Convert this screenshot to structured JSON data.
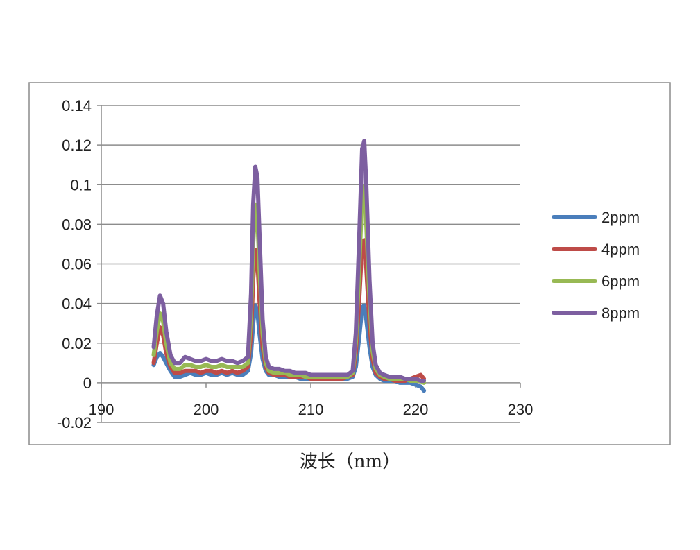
{
  "chart_data": {
    "type": "line",
    "xlabel": "波长（nm）",
    "ylabel": "",
    "title": "",
    "xlim": [
      190,
      230
    ],
    "ylim": [
      -0.02,
      0.14
    ],
    "x_ticks": [
      "190",
      "200",
      "210",
      "220",
      "230"
    ],
    "y_ticks": [
      "-0.02",
      "0",
      "0.02",
      "0.04",
      "0.06",
      "0.08",
      "0.1",
      "0.12",
      "0.14"
    ],
    "grid": "horizontal",
    "legend_position": "right",
    "series": [
      {
        "name": "2ppm",
        "color": "#4a7ebb",
        "points": [
          [
            195,
            0.009
          ],
          [
            195.3,
            0.013
          ],
          [
            195.6,
            0.015
          ],
          [
            195.9,
            0.013
          ],
          [
            196.2,
            0.01
          ],
          [
            196.6,
            0.006
          ],
          [
            197,
            0.003
          ],
          [
            197.5,
            0.003
          ],
          [
            198,
            0.004
          ],
          [
            198.5,
            0.005
          ],
          [
            199,
            0.004
          ],
          [
            199.5,
            0.004
          ],
          [
            200,
            0.005
          ],
          [
            200.5,
            0.004
          ],
          [
            201,
            0.004
          ],
          [
            201.5,
            0.005
          ],
          [
            202,
            0.004
          ],
          [
            202.5,
            0.005
          ],
          [
            203,
            0.004
          ],
          [
            203.5,
            0.004
          ],
          [
            204,
            0.006
          ],
          [
            204.3,
            0.015
          ],
          [
            204.5,
            0.03
          ],
          [
            204.7,
            0.039
          ],
          [
            204.9,
            0.036
          ],
          [
            205.1,
            0.025
          ],
          [
            205.4,
            0.012
          ],
          [
            205.7,
            0.006
          ],
          [
            206,
            0.004
          ],
          [
            206.5,
            0.004
          ],
          [
            207,
            0.003
          ],
          [
            207.5,
            0.003
          ],
          [
            208,
            0.003
          ],
          [
            208.5,
            0.003
          ],
          [
            209,
            0.002
          ],
          [
            209.5,
            0.002
          ],
          [
            210,
            0.002
          ],
          [
            210.5,
            0.002
          ],
          [
            211,
            0.002
          ],
          [
            211.5,
            0.002
          ],
          [
            212,
            0.002
          ],
          [
            212.5,
            0.002
          ],
          [
            213,
            0.002
          ],
          [
            213.5,
            0.002
          ],
          [
            214,
            0.003
          ],
          [
            214.3,
            0.008
          ],
          [
            214.6,
            0.022
          ],
          [
            214.9,
            0.038
          ],
          [
            215.1,
            0.039
          ],
          [
            215.3,
            0.032
          ],
          [
            215.6,
            0.018
          ],
          [
            215.9,
            0.008
          ],
          [
            216.2,
            0.004
          ],
          [
            216.6,
            0.002
          ],
          [
            217,
            0.001
          ],
          [
            217.5,
            0.001
          ],
          [
            218,
            0.001
          ],
          [
            218.5,
            0.0
          ],
          [
            219,
            0.0
          ],
          [
            219.5,
            0.0
          ],
          [
            220,
            -0.001
          ],
          [
            220.5,
            -0.002
          ],
          [
            220.8,
            -0.004
          ]
        ]
      },
      {
        "name": "4ppm",
        "color": "#be4b48",
        "points": [
          [
            195,
            0.01
          ],
          [
            195.3,
            0.02
          ],
          [
            195.6,
            0.028
          ],
          [
            195.9,
            0.024
          ],
          [
            196.2,
            0.015
          ],
          [
            196.6,
            0.008
          ],
          [
            197,
            0.005
          ],
          [
            197.5,
            0.005
          ],
          [
            198,
            0.006
          ],
          [
            198.5,
            0.006
          ],
          [
            199,
            0.006
          ],
          [
            199.5,
            0.005
          ],
          [
            200,
            0.006
          ],
          [
            200.5,
            0.006
          ],
          [
            201,
            0.005
          ],
          [
            201.5,
            0.006
          ],
          [
            202,
            0.005
          ],
          [
            202.5,
            0.006
          ],
          [
            203,
            0.005
          ],
          [
            203.5,
            0.006
          ],
          [
            204,
            0.008
          ],
          [
            204.3,
            0.025
          ],
          [
            204.5,
            0.052
          ],
          [
            204.7,
            0.067
          ],
          [
            204.9,
            0.062
          ],
          [
            205.1,
            0.042
          ],
          [
            205.4,
            0.018
          ],
          [
            205.7,
            0.008
          ],
          [
            206,
            0.005
          ],
          [
            206.5,
            0.004
          ],
          [
            207,
            0.004
          ],
          [
            207.5,
            0.004
          ],
          [
            208,
            0.003
          ],
          [
            208.5,
            0.003
          ],
          [
            209,
            0.003
          ],
          [
            209.5,
            0.003
          ],
          [
            210,
            0.002
          ],
          [
            210.5,
            0.002
          ],
          [
            211,
            0.002
          ],
          [
            211.5,
            0.002
          ],
          [
            212,
            0.002
          ],
          [
            212.5,
            0.002
          ],
          [
            213,
            0.002
          ],
          [
            213.5,
            0.003
          ],
          [
            214,
            0.004
          ],
          [
            214.3,
            0.015
          ],
          [
            214.6,
            0.04
          ],
          [
            214.9,
            0.07
          ],
          [
            215.1,
            0.072
          ],
          [
            215.3,
            0.058
          ],
          [
            215.6,
            0.03
          ],
          [
            215.9,
            0.012
          ],
          [
            216.2,
            0.005
          ],
          [
            216.6,
            0.003
          ],
          [
            217,
            0.002
          ],
          [
            217.5,
            0.002
          ],
          [
            218,
            0.001
          ],
          [
            218.5,
            0.001
          ],
          [
            219,
            0.001
          ],
          [
            219.5,
            0.002
          ],
          [
            220,
            0.003
          ],
          [
            220.5,
            0.004
          ],
          [
            220.8,
            0.002
          ]
        ]
      },
      {
        "name": "6ppm",
        "color": "#98b954",
        "points": [
          [
            195,
            0.014
          ],
          [
            195.3,
            0.026
          ],
          [
            195.6,
            0.035
          ],
          [
            195.9,
            0.031
          ],
          [
            196.2,
            0.02
          ],
          [
            196.6,
            0.01
          ],
          [
            197,
            0.007
          ],
          [
            197.5,
            0.007
          ],
          [
            198,
            0.009
          ],
          [
            198.5,
            0.009
          ],
          [
            199,
            0.008
          ],
          [
            199.5,
            0.008
          ],
          [
            200,
            0.009
          ],
          [
            200.5,
            0.008
          ],
          [
            201,
            0.008
          ],
          [
            201.5,
            0.009
          ],
          [
            202,
            0.008
          ],
          [
            202.5,
            0.008
          ],
          [
            203,
            0.008
          ],
          [
            203.5,
            0.008
          ],
          [
            204,
            0.01
          ],
          [
            204.3,
            0.035
          ],
          [
            204.5,
            0.07
          ],
          [
            204.7,
            0.09
          ],
          [
            204.9,
            0.084
          ],
          [
            205.1,
            0.058
          ],
          [
            205.4,
            0.025
          ],
          [
            205.7,
            0.01
          ],
          [
            206,
            0.006
          ],
          [
            206.5,
            0.005
          ],
          [
            207,
            0.005
          ],
          [
            207.5,
            0.005
          ],
          [
            208,
            0.004
          ],
          [
            208.5,
            0.004
          ],
          [
            209,
            0.004
          ],
          [
            209.5,
            0.003
          ],
          [
            210,
            0.003
          ],
          [
            210.5,
            0.003
          ],
          [
            211,
            0.003
          ],
          [
            211.5,
            0.003
          ],
          [
            212,
            0.003
          ],
          [
            212.5,
            0.003
          ],
          [
            213,
            0.003
          ],
          [
            213.5,
            0.003
          ],
          [
            214,
            0.005
          ],
          [
            214.3,
            0.02
          ],
          [
            214.6,
            0.055
          ],
          [
            214.9,
            0.095
          ],
          [
            215.1,
            0.099
          ],
          [
            215.3,
            0.08
          ],
          [
            215.6,
            0.042
          ],
          [
            215.9,
            0.016
          ],
          [
            216.2,
            0.007
          ],
          [
            216.6,
            0.004
          ],
          [
            217,
            0.003
          ],
          [
            217.5,
            0.002
          ],
          [
            218,
            0.002
          ],
          [
            218.5,
            0.002
          ],
          [
            219,
            0.002
          ],
          [
            219.5,
            0.001
          ],
          [
            220,
            0.001
          ],
          [
            220.5,
            0.001
          ],
          [
            220.8,
            0.0
          ]
        ]
      },
      {
        "name": "8ppm",
        "color": "#7d5fa0",
        "points": [
          [
            195,
            0.018
          ],
          [
            195.3,
            0.034
          ],
          [
            195.6,
            0.044
          ],
          [
            195.9,
            0.04
          ],
          [
            196.2,
            0.026
          ],
          [
            196.6,
            0.014
          ],
          [
            197,
            0.01
          ],
          [
            197.5,
            0.01
          ],
          [
            198,
            0.013
          ],
          [
            198.5,
            0.012
          ],
          [
            199,
            0.011
          ],
          [
            199.5,
            0.011
          ],
          [
            200,
            0.012
          ],
          [
            200.5,
            0.011
          ],
          [
            201,
            0.011
          ],
          [
            201.5,
            0.012
          ],
          [
            202,
            0.011
          ],
          [
            202.5,
            0.011
          ],
          [
            203,
            0.01
          ],
          [
            203.5,
            0.011
          ],
          [
            204,
            0.013
          ],
          [
            204.3,
            0.045
          ],
          [
            204.5,
            0.09
          ],
          [
            204.7,
            0.109
          ],
          [
            204.9,
            0.104
          ],
          [
            205.1,
            0.075
          ],
          [
            205.4,
            0.032
          ],
          [
            205.7,
            0.013
          ],
          [
            206,
            0.008
          ],
          [
            206.5,
            0.007
          ],
          [
            207,
            0.007
          ],
          [
            207.5,
            0.006
          ],
          [
            208,
            0.006
          ],
          [
            208.5,
            0.005
          ],
          [
            209,
            0.005
          ],
          [
            209.5,
            0.005
          ],
          [
            210,
            0.004
          ],
          [
            210.5,
            0.004
          ],
          [
            211,
            0.004
          ],
          [
            211.5,
            0.004
          ],
          [
            212,
            0.004
          ],
          [
            212.5,
            0.004
          ],
          [
            213,
            0.004
          ],
          [
            213.5,
            0.004
          ],
          [
            214,
            0.006
          ],
          [
            214.3,
            0.025
          ],
          [
            214.6,
            0.07
          ],
          [
            214.9,
            0.118
          ],
          [
            215.1,
            0.122
          ],
          [
            215.3,
            0.1
          ],
          [
            215.6,
            0.052
          ],
          [
            215.9,
            0.02
          ],
          [
            216.2,
            0.009
          ],
          [
            216.6,
            0.005
          ],
          [
            217,
            0.004
          ],
          [
            217.5,
            0.003
          ],
          [
            218,
            0.003
          ],
          [
            218.5,
            0.003
          ],
          [
            219,
            0.002
          ],
          [
            219.5,
            0.002
          ],
          [
            220,
            0.002
          ],
          [
            220.5,
            0.001
          ],
          [
            220.8,
            0.001
          ]
        ]
      }
    ]
  }
}
